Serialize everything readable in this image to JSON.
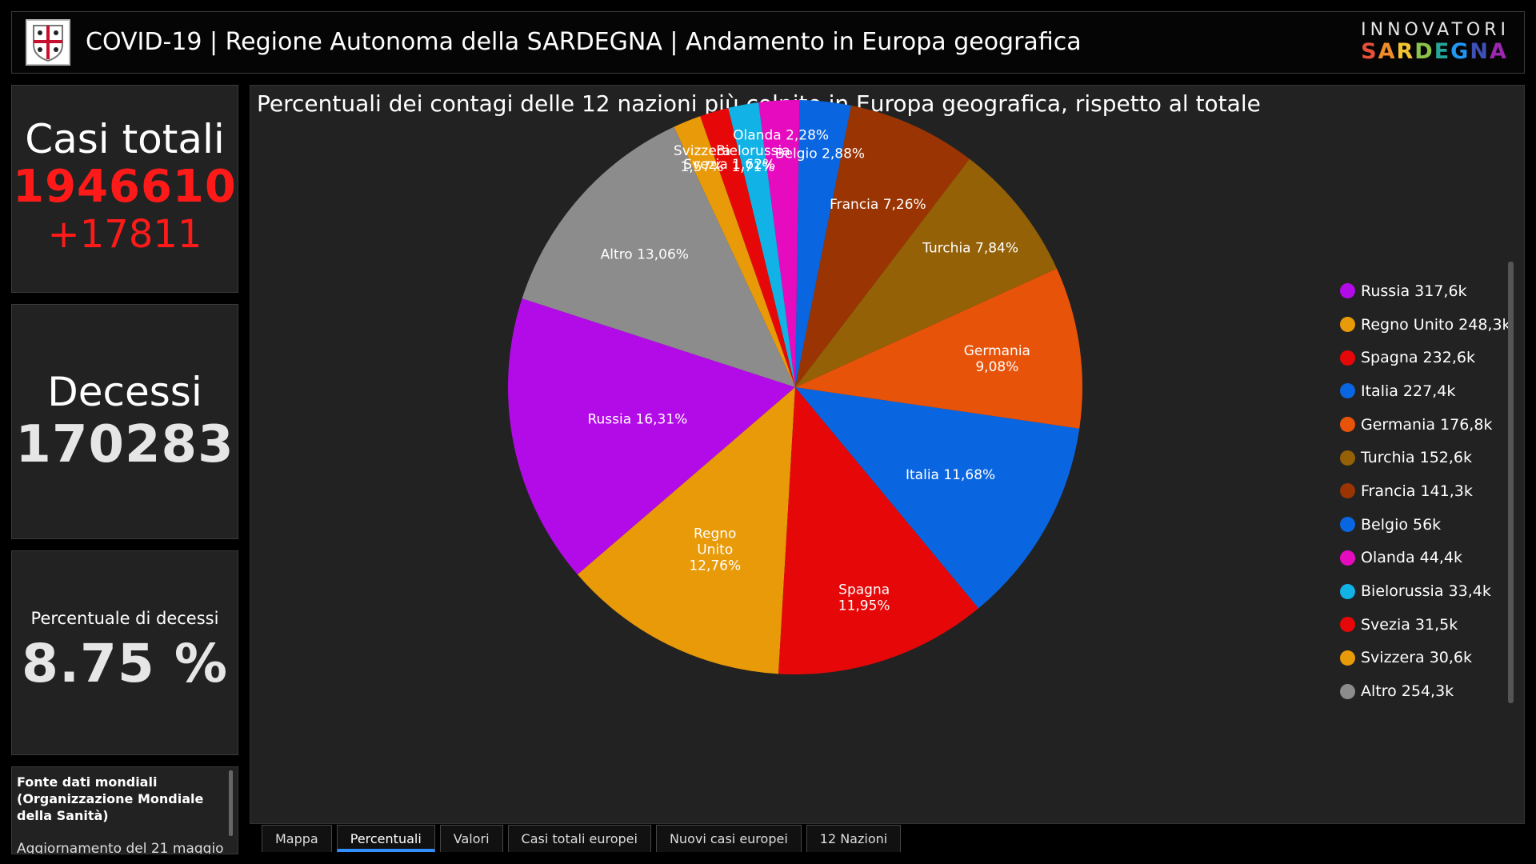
{
  "header": {
    "title": "COVID-19 | Regione Autonoma della SARDEGNA | Andamento in Europa geografica",
    "brand_line1": "INNOVATORI",
    "brand_line2": [
      "S",
      "A",
      "R",
      "D",
      "E",
      "G",
      "N",
      "A"
    ]
  },
  "stats": {
    "total_label": "Casi totali",
    "total_value": "1946610",
    "total_delta": "+17811",
    "deaths_label": "Decessi",
    "deaths_value": "170283",
    "rate_label": "Percentuale di decessi",
    "rate_value": "8.75 %"
  },
  "source": {
    "title": "Fonte dati mondiali (Organizzazione Mondiale della Sanità)",
    "update": "Aggiornamento del 21 maggio"
  },
  "tabs": [
    {
      "label": "Mappa",
      "active": false
    },
    {
      "label": "Percentuali",
      "active": true
    },
    {
      "label": "Valori",
      "active": false
    },
    {
      "label": "Casi totali europei",
      "active": false
    },
    {
      "label": "Nuovi casi europei",
      "active": false
    },
    {
      "label": "12 Nazioni",
      "active": false
    }
  ],
  "chart_data": {
    "type": "pie",
    "title": "Percentuali dei contagi delle 12 nazioni più colpite in Europa geografica, rispetto al totale",
    "legend_position": "right",
    "slices": [
      {
        "name": "Russia",
        "percent": 16.31,
        "percent_label": "16,31%",
        "legend": "Russia 317,6k",
        "color": "#b30be8"
      },
      {
        "name": "Regno Unito",
        "percent": 12.76,
        "percent_label": "12,76%",
        "legend": "Regno Unito 248,3k",
        "color": "#e89a08"
      },
      {
        "name": "Spagna",
        "percent": 11.95,
        "percent_label": "11,95%",
        "legend": "Spagna 232,6k",
        "color": "#e60808"
      },
      {
        "name": "Italia",
        "percent": 11.68,
        "percent_label": "11,68%",
        "legend": "Italia 227,4k",
        "color": "#0a66e0"
      },
      {
        "name": "Germania",
        "percent": 9.08,
        "percent_label": "9,08%",
        "legend": "Germania 176,8k",
        "color": "#e8530a"
      },
      {
        "name": "Turchia",
        "percent": 7.84,
        "percent_label": "7,84%",
        "legend": "Turchia 152,6k",
        "color": "#946106"
      },
      {
        "name": "Francia",
        "percent": 7.26,
        "percent_label": "7,26%",
        "legend": "Francia 141,3k",
        "color": "#9a3503"
      },
      {
        "name": "Belgio",
        "percent": 2.88,
        "percent_label": "2,88%",
        "legend": "Belgio 56k",
        "color": "#0a66e0"
      },
      {
        "name": "Olanda",
        "percent": 2.28,
        "percent_label": "2,28%",
        "legend": "Olanda 44,4k",
        "color": "#e60bbe"
      },
      {
        "name": "Bielorussia",
        "percent": 1.71,
        "percent_label": "1,71%",
        "legend": "Bielorussia 33,4k",
        "color": "#11b2e6"
      },
      {
        "name": "Svezia",
        "percent": 1.62,
        "percent_label": "1,62%",
        "legend": "Svezia 31,5k",
        "color": "#e60808"
      },
      {
        "name": "Svizzera",
        "percent": 1.57,
        "percent_label": "1,57%",
        "legend": "Svizzera 30,6k",
        "color": "#e89a08"
      },
      {
        "name": "Altro",
        "percent": 13.06,
        "percent_label": "13,06%",
        "legend": "Altro 254,3k",
        "color": "#8c8c8c"
      }
    ]
  }
}
